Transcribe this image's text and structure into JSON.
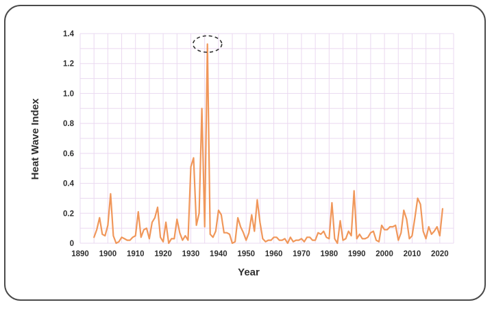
{
  "chart_data": {
    "type": "line",
    "title": "",
    "xlabel": "Year",
    "ylabel": "Heat Wave Index",
    "xlim": [
      1890,
      2025
    ],
    "ylim": [
      0,
      1.4
    ],
    "x_ticks": [
      1890,
      1900,
      1910,
      1920,
      1930,
      1940,
      1950,
      1960,
      1970,
      1980,
      1990,
      2000,
      2010,
      2020
    ],
    "y_ticks": [
      0,
      0.2,
      0.4,
      0.6,
      0.8,
      1.0,
      1.2,
      1.4
    ],
    "y_tick_labels": [
      "0",
      "0.2",
      "0.4",
      "0.6",
      "0.8",
      "1.0",
      "1.2",
      "1.4"
    ],
    "grid": "vertical and horizontal",
    "line_color": "#f0975a",
    "grid_color": "#ead8f0",
    "highlight": {
      "type": "dashed-ellipse",
      "year": 1936,
      "value": 1.33
    },
    "series": [
      {
        "x": [
          1895,
          1896,
          1897,
          1898,
          1899,
          1900,
          1901,
          1902,
          1903,
          1904,
          1905,
          1906,
          1907,
          1908,
          1909,
          1910,
          1911,
          1912,
          1913,
          1914,
          1915,
          1916,
          1917,
          1918,
          1919,
          1920,
          1921,
          1922,
          1923,
          1924,
          1925,
          1926,
          1927,
          1928,
          1929,
          1930,
          1931,
          1932,
          1933,
          1934,
          1935,
          1936,
          1937,
          1938,
          1939,
          1940,
          1941,
          1942,
          1943,
          1944,
          1945,
          1946,
          1947,
          1948,
          1949,
          1950,
          1951,
          1952,
          1953,
          1954,
          1955,
          1956,
          1957,
          1958,
          1959,
          1960,
          1961,
          1962,
          1963,
          1964,
          1965,
          1966,
          1967,
          1968,
          1969,
          1970,
          1971,
          1972,
          1973,
          1974,
          1975,
          1976,
          1977,
          1978,
          1979,
          1980,
          1981,
          1982,
          1983,
          1984,
          1985,
          1986,
          1987,
          1988,
          1989,
          1990,
          1991,
          1992,
          1993,
          1994,
          1995,
          1996,
          1997,
          1998,
          1999,
          2000,
          2001,
          2002,
          2003,
          2004,
          2005,
          2006,
          2007,
          2008,
          2009,
          2010,
          2011,
          2012,
          2013,
          2014,
          2015,
          2016,
          2017,
          2018,
          2019,
          2020,
          2021
        ],
        "values": [
          0.04,
          0.09,
          0.17,
          0.06,
          0.05,
          0.12,
          0.33,
          0.05,
          0.0,
          0.01,
          0.04,
          0.03,
          0.02,
          0.02,
          0.04,
          0.05,
          0.21,
          0.04,
          0.09,
          0.1,
          0.03,
          0.14,
          0.17,
          0.24,
          0.04,
          0.01,
          0.14,
          0.0,
          0.03,
          0.03,
          0.16,
          0.07,
          0.02,
          0.05,
          0.02,
          0.51,
          0.57,
          0.12,
          0.2,
          0.9,
          0.11,
          1.33,
          0.06,
          0.04,
          0.08,
          0.22,
          0.19,
          0.07,
          0.07,
          0.06,
          0.0,
          0.01,
          0.17,
          0.11,
          0.07,
          0.02,
          0.07,
          0.19,
          0.08,
          0.29,
          0.14,
          0.03,
          0.01,
          0.02,
          0.02,
          0.04,
          0.04,
          0.02,
          0.02,
          0.03,
          0.0,
          0.04,
          0.01,
          0.02,
          0.02,
          0.03,
          0.01,
          0.04,
          0.04,
          0.02,
          0.02,
          0.07,
          0.06,
          0.08,
          0.04,
          0.03,
          0.27,
          0.03,
          0.0,
          0.15,
          0.02,
          0.03,
          0.08,
          0.05,
          0.35,
          0.03,
          0.06,
          0.03,
          0.03,
          0.04,
          0.07,
          0.08,
          0.02,
          0.01,
          0.12,
          0.09,
          0.09,
          0.11,
          0.11,
          0.12,
          0.02,
          0.07,
          0.22,
          0.16,
          0.03,
          0.05,
          0.17,
          0.3,
          0.26,
          0.08,
          0.03,
          0.11,
          0.06,
          0.08,
          0.11,
          0.05,
          0.23
        ]
      }
    ]
  }
}
